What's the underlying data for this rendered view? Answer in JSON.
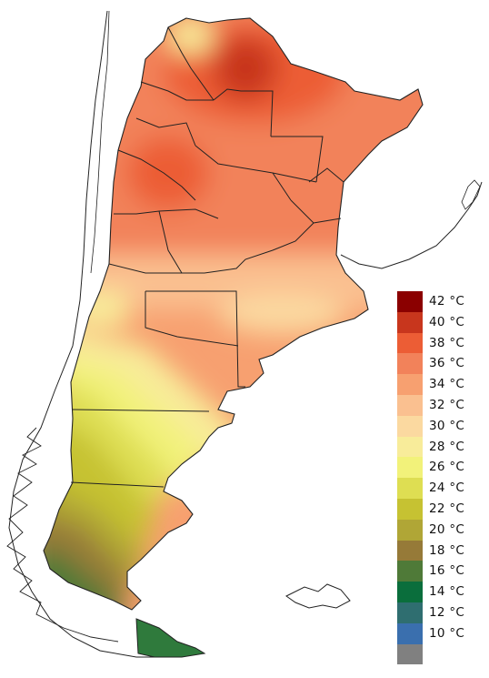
{
  "legend": {
    "items": [
      {
        "label": "42 °C",
        "color": "#8b0000"
      },
      {
        "label": "40 °C",
        "color": "#c8361d"
      },
      {
        "label": "38 °C",
        "color": "#ec5d35"
      },
      {
        "label": "36 °C",
        "color": "#f2825a"
      },
      {
        "label": "34 °C",
        "color": "#f7a070"
      },
      {
        "label": "32 °C",
        "color": "#fac090"
      },
      {
        "label": "30 °C",
        "color": "#fbd9a0"
      },
      {
        "label": "28 °C",
        "color": "#f8ec9a"
      },
      {
        "label": "26 °C",
        "color": "#f2f27a"
      },
      {
        "label": "24 °C",
        "color": "#dede52"
      },
      {
        "label": "22 °C",
        "color": "#c6c232"
      },
      {
        "label": "20 °C",
        "color": "#b0a636"
      },
      {
        "label": "18 °C",
        "color": "#967a38"
      },
      {
        "label": "16 °C",
        "color": "#4f7a38"
      },
      {
        "label": "14 °C",
        "color": "#0a6e3c"
      },
      {
        "label": "12 °C",
        "color": "#2f6e70"
      },
      {
        "label": "10 °C",
        "color": "#3a6fae"
      },
      {
        "label": "",
        "color": "#808080"
      }
    ]
  }
}
